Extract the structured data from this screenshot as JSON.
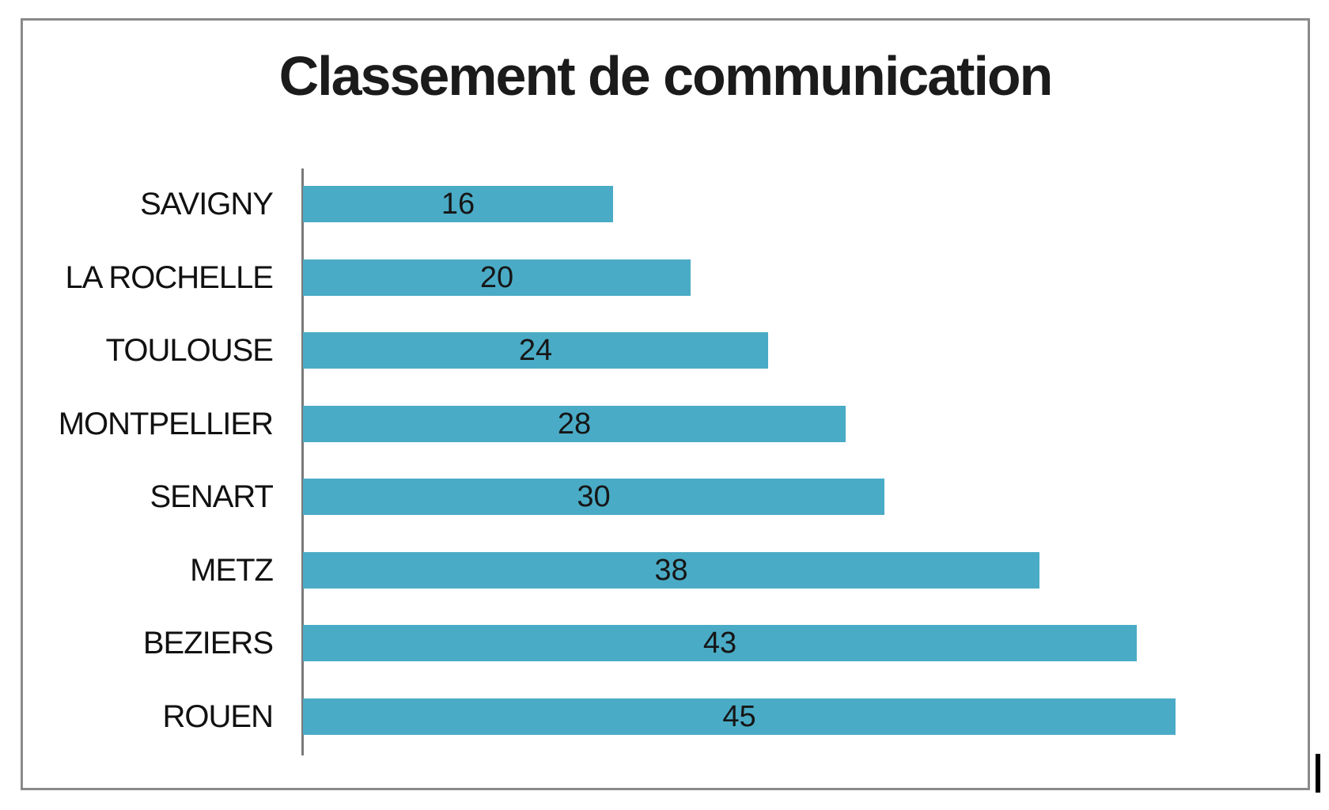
{
  "chart_data": {
    "type": "bar",
    "orientation": "horizontal",
    "title": "Classement de communication",
    "categories": [
      "SAVIGNY",
      "LA ROCHELLE",
      "TOULOUSE",
      "MONTPELLIER",
      "SENART",
      "METZ",
      "BEZIERS",
      "ROUEN"
    ],
    "values": [
      16,
      20,
      24,
      28,
      30,
      38,
      43,
      45
    ],
    "value_labels_position": "inside-center",
    "xlabel": "",
    "ylabel": "",
    "xlim": [
      0,
      52
    ],
    "grid": false,
    "legend": false,
    "colors": {
      "bar": "#4aabc6",
      "title_text": "#1b1b1b",
      "label_text": "#111111",
      "value_text": "#161616",
      "axis_line": "#7a7a7a",
      "frame_border": "#8a8a8a",
      "background": "#ffffff",
      "cursor_mark": "#000000"
    }
  }
}
